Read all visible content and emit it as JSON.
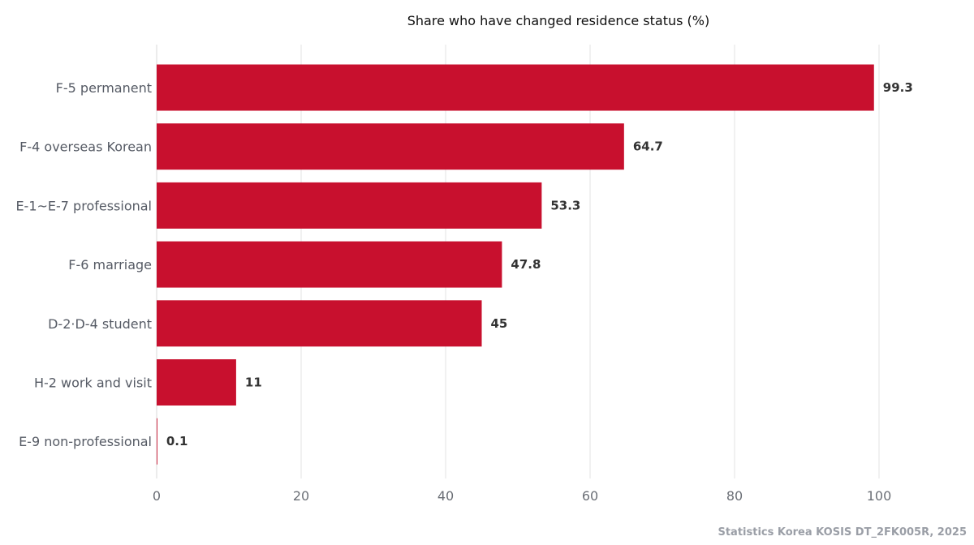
{
  "chart_data": {
    "type": "bar",
    "orientation": "horizontal",
    "title": "Share who have changed residence status (%)",
    "categories": [
      "F-5 permanent",
      "F-4 overseas Korean",
      "E-1~E-7 professional",
      "F-6 marriage",
      "D-2·D-4 student",
      "H-2 work and visit",
      "E-9 non-professional"
    ],
    "values": [
      99.3,
      64.7,
      53.3,
      47.8,
      45,
      11,
      0.1
    ],
    "value_labels": [
      "99.3",
      "64.7",
      "53.3",
      "47.8",
      "45",
      "11",
      "0.1"
    ],
    "xlim": [
      0,
      100
    ],
    "x_ticks": [
      0,
      20,
      40,
      60,
      80,
      100
    ],
    "x_tick_labels": [
      "0",
      "20",
      "40",
      "60",
      "80",
      "100"
    ],
    "grid": true,
    "bar_color": "#c8102e"
  },
  "source": "Statistics Korea KOSIS DT_2FK005R, 2025"
}
